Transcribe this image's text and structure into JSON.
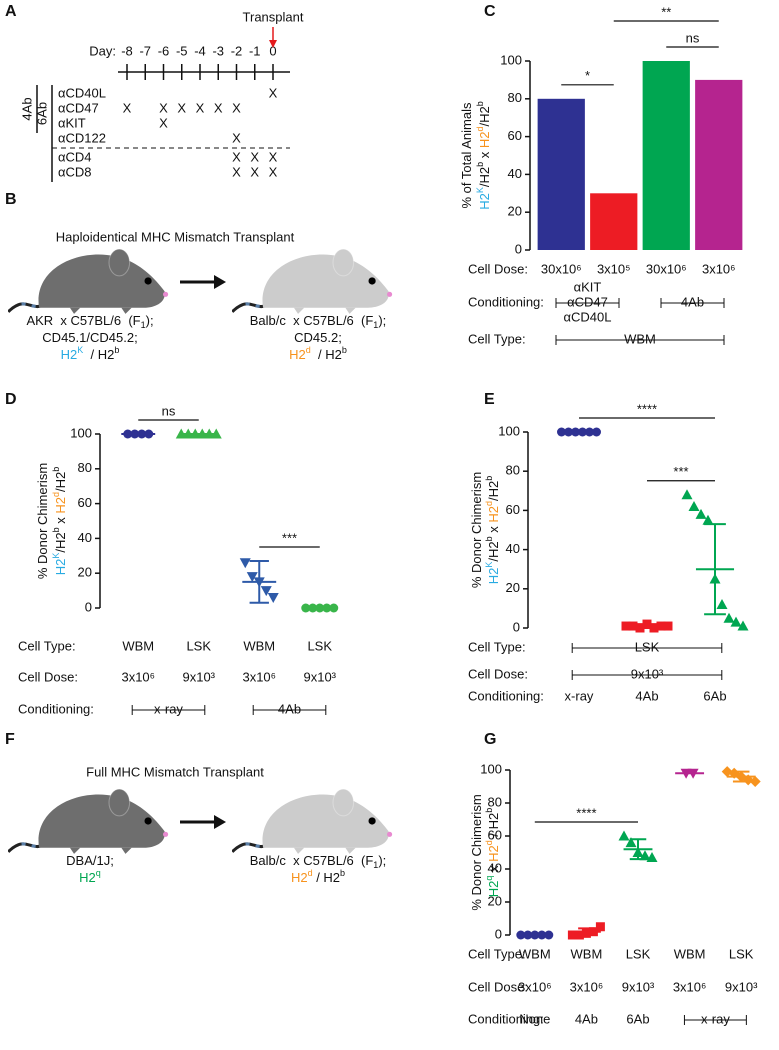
{
  "panel_labels": [
    "A",
    "B",
    "C",
    "D",
    "E",
    "F",
    "G"
  ],
  "timeline": {
    "annotation": "Transplant",
    "day_label": "Day:",
    "days": [
      "-8",
      "-7",
      "-6",
      "-5",
      "-4",
      "-3",
      "-2",
      "-1",
      "0"
    ],
    "rows": [
      {
        "label": "αCD40L",
        "cells": [
          null,
          null,
          null,
          null,
          null,
          null,
          null,
          null,
          "X"
        ]
      },
      {
        "label": "αCD47",
        "cells": [
          "X",
          null,
          "X",
          "X",
          "X",
          "X",
          "X",
          null,
          null
        ]
      },
      {
        "label": "αKIT",
        "cells": [
          null,
          null,
          "X",
          null,
          null,
          null,
          null,
          null,
          null
        ]
      },
      {
        "label": "αCD122",
        "cells": [
          null,
          null,
          null,
          null,
          null,
          null,
          "X",
          null,
          null
        ]
      },
      {
        "label": "αCD4",
        "cells": [
          null,
          null,
          null,
          null,
          null,
          null,
          "X",
          "X",
          "X"
        ]
      },
      {
        "label": "αCD8",
        "cells": [
          null,
          null,
          null,
          null,
          null,
          null,
          "X",
          "X",
          "X"
        ]
      }
    ],
    "groups": [
      {
        "label": "4Ab",
        "rows": [
          0,
          2
        ]
      },
      {
        "label": "6Ab",
        "rows": [
          0,
          5
        ]
      }
    ]
  },
  "haplo": {
    "title": "Haploidentical MHC Mismatch Transplant",
    "donor": [
      [
        {
          "text": "AKR  x C57BL/6  (F"
        },
        {
          "text": "1",
          "sub": true
        },
        {
          "text": ");"
        }
      ],
      [
        {
          "text": "CD45.1/CD45.2;"
        }
      ],
      [
        {
          "text": "H2",
          "color": "#29abe2"
        },
        {
          "text": "K",
          "sup": true,
          "color": "#29abe2"
        },
        {
          "text": "  / H2"
        },
        {
          "text": "b",
          "sup": true
        }
      ]
    ],
    "recipient": [
      [
        {
          "text": "Balb/c  x C57BL/6  (F"
        },
        {
          "text": "1",
          "sub": true
        },
        {
          "text": ");"
        }
      ],
      [
        {
          "text": "CD45.2;"
        }
      ],
      [
        {
          "text": "H2",
          "color": "#f7931e"
        },
        {
          "text": "d",
          "sup": true,
          "color": "#f7931e"
        },
        {
          "text": "  / H2"
        },
        {
          "text": "b",
          "sup": true
        }
      ]
    ]
  },
  "full": {
    "title": "Full MHC Mismatch Transplant",
    "donor": [
      [
        {
          "text": "DBA/1J;"
        }
      ],
      [
        {
          "text": "H2",
          "color": "#00a651"
        },
        {
          "text": "q",
          "sup": true,
          "color": "#00a651"
        }
      ]
    ],
    "recipient": [
      [
        {
          "text": "Balb/c  x C57BL/6  (F"
        },
        {
          "text": "1",
          "sub": true
        },
        {
          "text": ");"
        }
      ],
      [
        {
          "text": "H2",
          "color": "#f7931e"
        },
        {
          "text": "d",
          "sup": true,
          "color": "#f7931e"
        },
        {
          "text": " / H2"
        },
        {
          "text": "b",
          "sup": true
        }
      ]
    ]
  },
  "chart_data": [
    {
      "type": "bar",
      "y_label": [
        [
          {
            "text": "% of Total Animals"
          }
        ],
        [
          {
            "text": "H2",
            "color": "#29abe2"
          },
          {
            "text": "K",
            "sup": true,
            "color": "#29abe2"
          },
          {
            "text": "/H2"
          },
          {
            "text": "b",
            "sup": true
          },
          {
            "text": " x "
          },
          {
            "text": "H2",
            "color": "#f7931e"
          },
          {
            "text": "d",
            "sup": true,
            "color": "#f7931e"
          },
          {
            "text": "/H2"
          },
          {
            "text": "b",
            "sup": true
          }
        ]
      ],
      "values": [
        80,
        30,
        100,
        90
      ],
      "colors": [
        "#2e3192",
        "#ed1c24",
        "#00a651",
        "#b5248f"
      ],
      "ylim": [
        0,
        100
      ],
      "yticks": [
        0,
        20,
        40,
        60,
        80,
        100
      ],
      "rows": [
        {
          "label": "Cell Dose:",
          "spans": [
            {
              "lines": [
                "30x10⁶"
              ],
              "groups": [
                0,
                0
              ]
            },
            {
              "lines": [
                "3x10⁵"
              ],
              "groups": [
                1,
                1
              ]
            },
            {
              "lines": [
                "30x10⁶"
              ],
              "groups": [
                2,
                2
              ]
            },
            {
              "lines": [
                "3x10⁶"
              ],
              "groups": [
                3,
                3
              ]
            }
          ]
        },
        {
          "label": "Conditioning:",
          "spans": [
            {
              "lines": [
                "αKIT",
                "αCD47",
                "αCD40L"
              ],
              "groups": [
                0,
                1
              ]
            },
            {
              "lines": [
                "4Ab"
              ],
              "groups": [
                2,
                3
              ]
            }
          ]
        },
        {
          "label": "Cell Type:",
          "spans": [
            {
              "lines": [
                "WBM"
              ],
              "groups": [
                0,
                3
              ]
            }
          ]
        }
      ],
      "significance": [
        {
          "label": "*",
          "groups": [
            0,
            1
          ]
        },
        {
          "label": "**",
          "groups": [
            1,
            3
          ]
        },
        {
          "label": "ns",
          "groups": [
            2,
            3
          ]
        }
      ]
    },
    {
      "type": "strip",
      "y_label": [
        [
          {
            "text": "% Donor Chimerism"
          }
        ],
        [
          {
            "text": "H2",
            "color": "#29abe2"
          },
          {
            "text": "K",
            "sup": true,
            "color": "#29abe2"
          },
          {
            "text": "/H2"
          },
          {
            "text": "b",
            "sup": true
          },
          {
            "text": " x "
          },
          {
            "text": "H2",
            "color": "#f7931e"
          },
          {
            "text": "d",
            "sup": true,
            "color": "#f7931e"
          },
          {
            "text": "/H2"
          },
          {
            "text": "b",
            "sup": true
          }
        ]
      ],
      "ylim": [
        0,
        100
      ],
      "yticks": [
        0,
        20,
        40,
        60,
        80,
        100
      ],
      "groups": [
        {
          "values": [
            100,
            100,
            100,
            100
          ],
          "mean": 100,
          "sd": 0,
          "color": "#2e3192",
          "marker": "circle"
        },
        {
          "values": [
            100,
            100,
            100,
            100,
            100,
            100
          ],
          "mean": 100,
          "sd": 0,
          "color": "#39b54a",
          "marker": "triangle-up"
        },
        {
          "values": [
            26,
            18,
            15,
            10,
            6
          ],
          "mean": 15,
          "sd": 12,
          "color": "#2e5aa8",
          "marker": "triangle-down"
        },
        {
          "values": [
            0,
            0,
            0,
            0,
            0
          ],
          "mean": 0,
          "sd": 0,
          "color": "#39b54a",
          "marker": "circle"
        }
      ],
      "rows": [
        {
          "label": "Cell Type:",
          "spans": [
            {
              "lines": [
                "WBM"
              ],
              "groups": [
                0,
                0
              ]
            },
            {
              "lines": [
                "LSK"
              ],
              "groups": [
                1,
                1
              ]
            },
            {
              "lines": [
                "WBM"
              ],
              "groups": [
                2,
                2
              ]
            },
            {
              "lines": [
                "LSK"
              ],
              "groups": [
                3,
                3
              ]
            }
          ]
        },
        {
          "label": "Cell Dose:",
          "spans": [
            {
              "lines": [
                "3x10⁶"
              ],
              "groups": [
                0,
                0
              ]
            },
            {
              "lines": [
                "9x10³"
              ],
              "groups": [
                1,
                1
              ]
            },
            {
              "lines": [
                "3x10⁶"
              ],
              "groups": [
                2,
                2
              ]
            },
            {
              "lines": [
                "9x10³"
              ],
              "groups": [
                3,
                3
              ]
            }
          ]
        },
        {
          "label": "Conditioning:",
          "spans": [
            {
              "lines": [
                "x-ray"
              ],
              "groups": [
                0,
                1
              ]
            },
            {
              "lines": [
                "4Ab"
              ],
              "groups": [
                2,
                3
              ]
            }
          ]
        }
      ],
      "significance": [
        {
          "label": "ns",
          "groups": [
            0,
            1
          ]
        },
        {
          "label": "***",
          "groups": [
            2,
            3
          ]
        }
      ]
    },
    {
      "type": "strip",
      "y_label": [
        [
          {
            "text": "% Donor Chimerism"
          }
        ],
        [
          {
            "text": "H2",
            "color": "#29abe2"
          },
          {
            "text": "K",
            "sup": true,
            "color": "#29abe2"
          },
          {
            "text": "/H2"
          },
          {
            "text": "b",
            "sup": true
          },
          {
            "text": " x "
          },
          {
            "text": "H2",
            "color": "#f7931e"
          },
          {
            "text": "d",
            "sup": true,
            "color": "#f7931e"
          },
          {
            "text": "/H2"
          },
          {
            "text": "b",
            "sup": true
          }
        ]
      ],
      "ylim": [
        0,
        100
      ],
      "yticks": [
        0,
        20,
        40,
        60,
        80,
        100
      ],
      "groups": [
        {
          "values": [
            100,
            100,
            100,
            100,
            100,
            100
          ],
          "mean": 100,
          "sd": 0,
          "color": "#2e3192",
          "marker": "circle"
        },
        {
          "values": [
            1,
            1,
            0,
            2,
            0,
            1,
            1
          ],
          "mean": 1,
          "sd": 1,
          "color": "#ed1c24",
          "marker": "square"
        },
        {
          "values": [
            68,
            62,
            58,
            55,
            25,
            12,
            5,
            3,
            1
          ],
          "mean": 30,
          "sd": 23,
          "color": "#00a651",
          "marker": "triangle-up"
        }
      ],
      "rows": [
        {
          "label": "Cell Type:",
          "spans": [
            {
              "lines": [
                "LSK"
              ],
              "groups": [
                0,
                2
              ]
            }
          ]
        },
        {
          "label": "Cell Dose:",
          "spans": [
            {
              "lines": [
                "9x10³"
              ],
              "groups": [
                0,
                2
              ]
            }
          ]
        },
        {
          "label": "Conditioning:",
          "spans": [
            {
              "lines": [
                "x-ray"
              ],
              "groups": [
                0,
                0
              ]
            },
            {
              "lines": [
                "4Ab"
              ],
              "groups": [
                1,
                1
              ]
            },
            {
              "lines": [
                "6Ab"
              ],
              "groups": [
                2,
                2
              ]
            }
          ]
        }
      ],
      "significance": [
        {
          "label": "****",
          "groups": [
            0,
            2
          ]
        },
        {
          "label": "***",
          "groups": [
            1,
            2
          ]
        }
      ]
    },
    {
      "type": "strip",
      "y_label": [
        [
          {
            "text": "% Donor Chimerism"
          }
        ],
        [
          {
            "text": "H2",
            "color": "#00a651"
          },
          {
            "text": "q",
            "sup": true,
            "color": "#00a651"
          },
          {
            "text": " x "
          },
          {
            "text": "H2",
            "color": "#f7931e"
          },
          {
            "text": "d",
            "sup": true,
            "color": "#f7931e"
          },
          {
            "text": " / H2"
          },
          {
            "text": "b",
            "sup": true
          }
        ]
      ],
      "ylim": [
        0,
        100
      ],
      "yticks": [
        0,
        20,
        40,
        60,
        80,
        100
      ],
      "groups": [
        {
          "values": [
            0,
            0,
            0,
            0,
            0
          ],
          "mean": 0,
          "sd": 0,
          "color": "#2e3192",
          "marker": "circle"
        },
        {
          "values": [
            0,
            0,
            1,
            2,
            5
          ],
          "mean": 2,
          "sd": 2,
          "color": "#ed1c24",
          "marker": "square"
        },
        {
          "values": [
            60,
            56,
            50,
            48,
            47
          ],
          "mean": 52,
          "sd": 6,
          "color": "#00a651",
          "marker": "triangle-up"
        },
        {
          "values": [
            98,
            98
          ],
          "mean": 98,
          "sd": 0,
          "color": "#b5248f",
          "marker": "triangle-down"
        },
        {
          "values": [
            99,
            98,
            96,
            94,
            93
          ],
          "mean": 96,
          "sd": 3,
          "color": "#f7931e",
          "marker": "diamond"
        }
      ],
      "rows": [
        {
          "label": "Cell Type:",
          "spans": [
            {
              "lines": [
                "WBM"
              ],
              "groups": [
                0,
                0
              ]
            },
            {
              "lines": [
                "WBM"
              ],
              "groups": [
                1,
                1
              ]
            },
            {
              "lines": [
                "LSK"
              ],
              "groups": [
                2,
                2
              ]
            },
            {
              "lines": [
                "WBM"
              ],
              "groups": [
                3,
                3
              ]
            },
            {
              "lines": [
                "LSK"
              ],
              "groups": [
                4,
                4
              ]
            }
          ]
        },
        {
          "label": "Cell Dose:",
          "spans": [
            {
              "lines": [
                "3x10⁶"
              ],
              "groups": [
                0,
                0
              ]
            },
            {
              "lines": [
                "3x10⁶"
              ],
              "groups": [
                1,
                1
              ]
            },
            {
              "lines": [
                "9x10³"
              ],
              "groups": [
                2,
                2
              ]
            },
            {
              "lines": [
                "3x10⁶"
              ],
              "groups": [
                3,
                3
              ]
            },
            {
              "lines": [
                "9x10³"
              ],
              "groups": [
                4,
                4
              ]
            }
          ]
        },
        {
          "label": "Conditioning:",
          "spans": [
            {
              "lines": [
                "None"
              ],
              "groups": [
                0,
                0
              ]
            },
            {
              "lines": [
                "4Ab"
              ],
              "groups": [
                1,
                1
              ]
            },
            {
              "lines": [
                "6Ab"
              ],
              "groups": [
                2,
                2
              ]
            },
            {
              "lines": [
                "x-ray"
              ],
              "groups": [
                3,
                4
              ]
            }
          ]
        }
      ],
      "significance": [
        {
          "label": "****",
          "groups": [
            0,
            2
          ]
        }
      ]
    }
  ]
}
